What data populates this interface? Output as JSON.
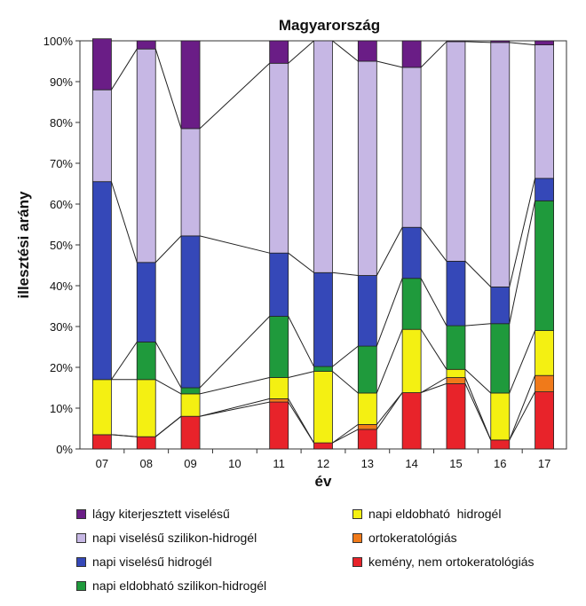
{
  "chart_data": {
    "type": "bar",
    "stacked": true,
    "title": "Magyarország",
    "xlabel": "év",
    "ylabel": "illesztési arány",
    "ylim": [
      0,
      100
    ],
    "ytick_labels": [
      "0%",
      "10%",
      "20%",
      "30%",
      "40%",
      "50%",
      "60%",
      "70%",
      "80%",
      "90%",
      "100%"
    ],
    "categories": [
      "07",
      "08",
      "09",
      "10",
      "11",
      "12",
      "13",
      "14",
      "15",
      "16",
      "17"
    ],
    "series": [
      {
        "name": "kemény, nem ortokeratológiás",
        "color": "#e8232a",
        "values": [
          3.5,
          3,
          8,
          null,
          11.5,
          1.5,
          4.8,
          13.8,
          16,
          2.2,
          14
        ]
      },
      {
        "name": "ortokeratológiás",
        "color": "#f07a1a",
        "values": [
          0,
          0,
          0,
          null,
          0.8,
          0,
          1.2,
          0,
          1.5,
          0,
          4
        ]
      },
      {
        "name": "napi eldobható hidrogél",
        "color": "#f4f012",
        "values": [
          13.5,
          14,
          5.5,
          null,
          5.2,
          17.5,
          7.7,
          15.5,
          2,
          11.5,
          11
        ]
      },
      {
        "name": "napi eldobható szilikon-hidrogél",
        "color": "#1f9a3c",
        "values": [
          0,
          9.2,
          1.5,
          null,
          15,
          1.2,
          11.5,
          12.5,
          10.7,
          17,
          31.8
        ]
      },
      {
        "name": "napi viselésű hidrogél",
        "color": "#3548b8",
        "values": [
          48.5,
          19.5,
          37.2,
          null,
          15.5,
          23,
          17.3,
          12.5,
          15.8,
          9,
          5.5
        ]
      },
      {
        "name": "napi viselésű szilikon-hidrogél",
        "color": "#c6b7e4",
        "values": [
          22.5,
          52.3,
          26.3,
          null,
          46.5,
          56.8,
          52.5,
          39.2,
          53.8,
          59.9,
          32.7
        ]
      },
      {
        "name": "lágy kiterjesztett viselésű",
        "color": "#6a1d86",
        "values": [
          12.5,
          2,
          21.5,
          null,
          5.5,
          0,
          5,
          6.5,
          0.2,
          0.4,
          1
        ]
      }
    ],
    "legend": {
      "position": "bottom",
      "left_column": [
        "lágy kiterjesztett viselésű",
        "napi viselésű szilikon-hidrogél",
        "napi viselésű hidrogél",
        "napi eldobható szilikon-hidrogél"
      ],
      "right_column": [
        "napi eldobható  hidrogél",
        "ortokeratológiás",
        "kemény, nem ortokeratológiás"
      ]
    }
  },
  "colors": {
    "lágy kiterjesztett viselésű": "#6a1d86",
    "napi viselésű szilikon-hidrogél": "#c6b7e4",
    "napi viselésű hidrogél": "#3548b8",
    "napi eldobható szilikon-hidrogél": "#1f9a3c",
    "napi eldobható  hidrogél": "#f4f012",
    "ortokeratológiás": "#f07a1a",
    "kemény, nem ortokeratológiás": "#e8232a"
  }
}
